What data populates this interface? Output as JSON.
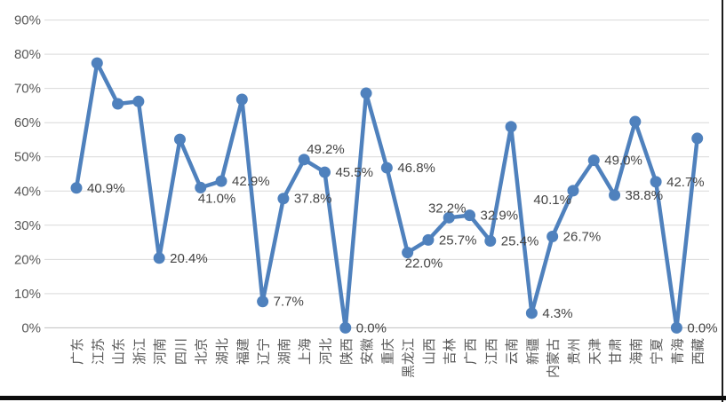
{
  "chart_data": {
    "type": "line",
    "title": "",
    "xlabel": "",
    "ylabel": "",
    "ylim": [
      0,
      90
    ],
    "ytick_labels": [
      "0%",
      "10%",
      "20%",
      "30%",
      "40%",
      "50%",
      "60%",
      "70%",
      "80%",
      "90%"
    ],
    "grid": true,
    "legend": false,
    "categories": [
      "广东",
      "江苏",
      "山东",
      "浙江",
      "河南",
      "四川",
      "北京",
      "湖北",
      "福建",
      "辽宁",
      "湖南",
      "上海",
      "河北",
      "陕西",
      "安徽",
      "重庆",
      "黑龙江",
      "山西",
      "吉林",
      "广西",
      "江西",
      "云南",
      "新疆",
      "内蒙古",
      "贵州",
      "天津",
      "甘肃",
      "海南",
      "宁夏",
      "青海",
      "西藏"
    ],
    "values": [
      40.9,
      77.4,
      65.5,
      66.2,
      20.4,
      55.1,
      41.0,
      42.9,
      66.8,
      7.7,
      37.8,
      49.2,
      45.5,
      0.0,
      68.6,
      46.8,
      22.0,
      25.7,
      32.2,
      32.9,
      25.4,
      58.8,
      4.3,
      26.7,
      40.1,
      49.0,
      38.8,
      60.3,
      42.7,
      0.0,
      55.4
    ],
    "point_labels": [
      "40.9%",
      null,
      null,
      null,
      "20.4%",
      null,
      "41.0%",
      "42.9%",
      null,
      "7.7%",
      "37.8%",
      "49.2%",
      "45.5%",
      "0.0%",
      null,
      "46.8%",
      "22.0%",
      "25.7%",
      "32.2%",
      "32.9%",
      "25.4%",
      null,
      "4.3%",
      "26.7%",
      "40.1%",
      "49.0%",
      "38.8%",
      null,
      "42.7%",
      "0.0%",
      null
    ],
    "point_label_positions": [
      "right",
      null,
      null,
      null,
      "right",
      null,
      "below",
      "right",
      null,
      "right",
      "right",
      "above-right",
      "right",
      "right",
      null,
      "right",
      "below",
      "right",
      "above",
      "right",
      "right",
      null,
      "right",
      "right",
      "left-below",
      "right",
      "right",
      null,
      "right",
      "right",
      null
    ],
    "colors": {
      "line": "#4F81BD",
      "marker": "#4F81BD",
      "gridline": "#D9D9D9",
      "axis_line": "#C0C0C0",
      "axis_text": "#595959",
      "label_text": "#444444",
      "frame_border": "#1a1a1a",
      "background": "#ffffff"
    }
  }
}
